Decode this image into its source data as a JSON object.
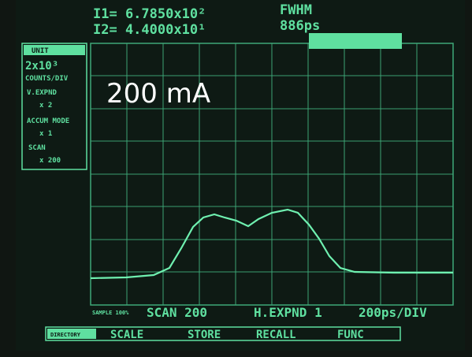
{
  "header": {
    "i1": "I1= 6.7850x10²",
    "i2": "I2= 4.4000x10¹",
    "fwhm_label": "FWHM",
    "fwhm_value": "886ps"
  },
  "side_panel": {
    "unit": "UNIT",
    "unit_value": "2x10³",
    "unit_caption": "COUNTS/DIV",
    "v_expnd": "V.EXPND",
    "v_expnd_value": "x 2",
    "accum_mode": "ACCUM MODE",
    "accum_value": "x 1",
    "scan": "SCAN",
    "scan_value": "x 200"
  },
  "overlay_label": "200 mA",
  "status": {
    "sample": "SAMPLE 100%",
    "scan": "SCAN 200",
    "h_expnd": "H.EXPND 1",
    "time_per_div": "200ps/DIV"
  },
  "menu": [
    "DIRECTORY",
    "SCALE",
    "STORE",
    "RECALL",
    "FUNC"
  ]
}
